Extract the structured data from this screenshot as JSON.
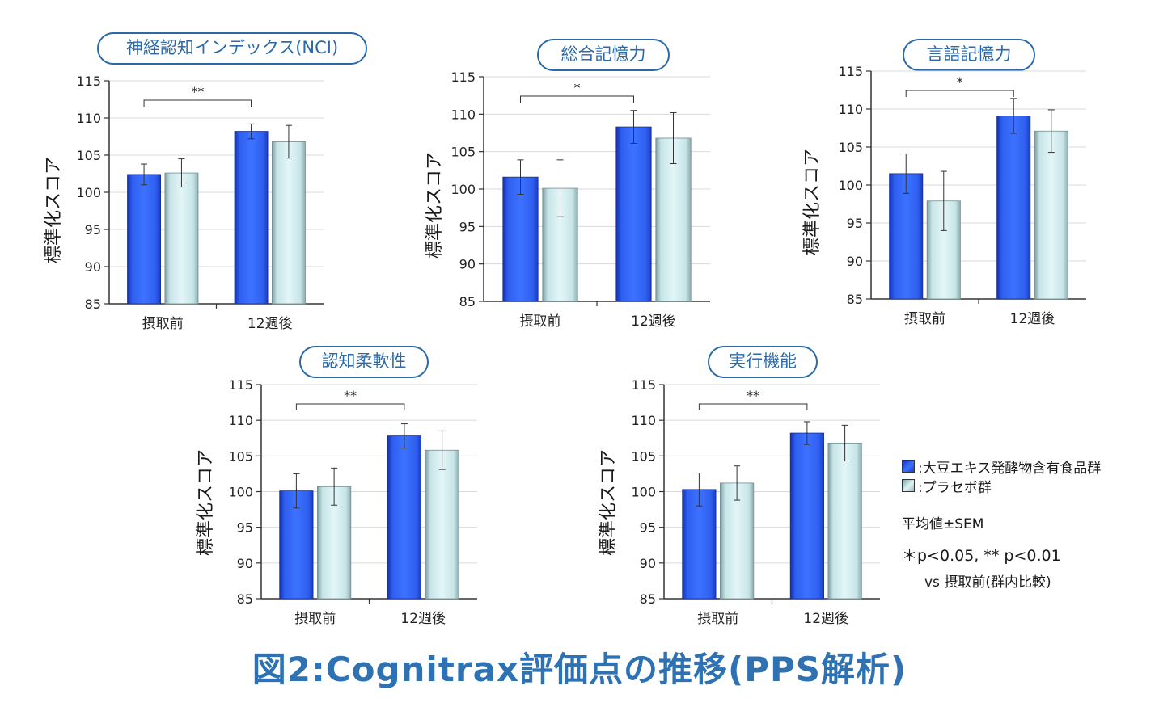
{
  "legend": {
    "series_a": ":大豆エキス発酵物含有食品群",
    "series_b": ":プラセボ群"
  },
  "notes": {
    "mean": "平均値±SEM",
    "pvalues": "＊p<0.05, ** p<0.01",
    "compare": "vs 摂取前(群内比較)"
  },
  "main_title": "図2:Cognitrax評価点の推移(PPS解析)",
  "colors": {
    "accent": "#2b6aa8",
    "title": "#2e72b4",
    "series_a": "#2f5ff0",
    "series_b": "#cfe9ec"
  },
  "chart_data": [
    {
      "type": "bar",
      "title": "神経認知インデックス(NCI)",
      "ylabel": "標準化スコア",
      "categories": [
        "摂取前",
        "12週後"
      ],
      "ylim": [
        85,
        115
      ],
      "yticks": [
        85,
        90,
        95,
        100,
        105,
        110,
        115
      ],
      "series": [
        {
          "name": "大豆エキス発酵物含有食品群",
          "values": [
            102.4,
            108.2
          ],
          "errors": [
            1.4,
            1.0
          ]
        },
        {
          "name": "プラセボ群",
          "values": [
            102.6,
            106.8
          ],
          "errors": [
            1.9,
            2.2
          ]
        }
      ],
      "significance": "**"
    },
    {
      "type": "bar",
      "title": "総合記憶力",
      "ylabel": "標準化スコア",
      "categories": [
        "摂取前",
        "12週後"
      ],
      "ylim": [
        85,
        115
      ],
      "yticks": [
        85,
        90,
        95,
        100,
        105,
        110,
        115
      ],
      "series": [
        {
          "name": "大豆エキス発酵物含有食品群",
          "values": [
            101.6,
            108.3
          ],
          "errors": [
            2.3,
            2.2
          ]
        },
        {
          "name": "プラセボ群",
          "values": [
            100.1,
            106.8
          ],
          "errors": [
            3.8,
            3.4
          ]
        }
      ],
      "significance": "*"
    },
    {
      "type": "bar",
      "title": "言語記憶力",
      "ylabel": "標準化スコア",
      "categories": [
        "摂取前",
        "12週後"
      ],
      "ylim": [
        85,
        115
      ],
      "yticks": [
        85,
        90,
        95,
        100,
        105,
        110,
        115
      ],
      "series": [
        {
          "name": "大豆エキス発酵物含有食品群",
          "values": [
            101.5,
            109.1
          ],
          "errors": [
            2.6,
            2.3
          ]
        },
        {
          "name": "プラセボ群",
          "values": [
            97.9,
            107.1
          ],
          "errors": [
            3.9,
            2.8
          ]
        }
      ],
      "significance": "*"
    },
    {
      "type": "bar",
      "title": "認知柔軟性",
      "ylabel": "標準化スコア",
      "categories": [
        "摂取前",
        "12週後"
      ],
      "ylim": [
        85,
        115
      ],
      "yticks": [
        85,
        90,
        95,
        100,
        105,
        110,
        115
      ],
      "series": [
        {
          "name": "大豆エキス発酵物含有食品群",
          "values": [
            100.1,
            107.8
          ],
          "errors": [
            2.4,
            1.7
          ]
        },
        {
          "name": "プラセボ群",
          "values": [
            100.7,
            105.8
          ],
          "errors": [
            2.6,
            2.7
          ]
        }
      ],
      "significance": "**"
    },
    {
      "type": "bar",
      "title": "実行機能",
      "ylabel": "標準化スコア",
      "categories": [
        "摂取前",
        "12週後"
      ],
      "ylim": [
        85,
        115
      ],
      "yticks": [
        85,
        90,
        95,
        100,
        105,
        110,
        115
      ],
      "series": [
        {
          "name": "大豆エキス発酵物含有食品群",
          "values": [
            100.3,
            108.2
          ],
          "errors": [
            2.3,
            1.6
          ]
        },
        {
          "name": "プラセボ群",
          "values": [
            101.2,
            106.8
          ],
          "errors": [
            2.4,
            2.5
          ]
        }
      ],
      "significance": "**"
    }
  ]
}
